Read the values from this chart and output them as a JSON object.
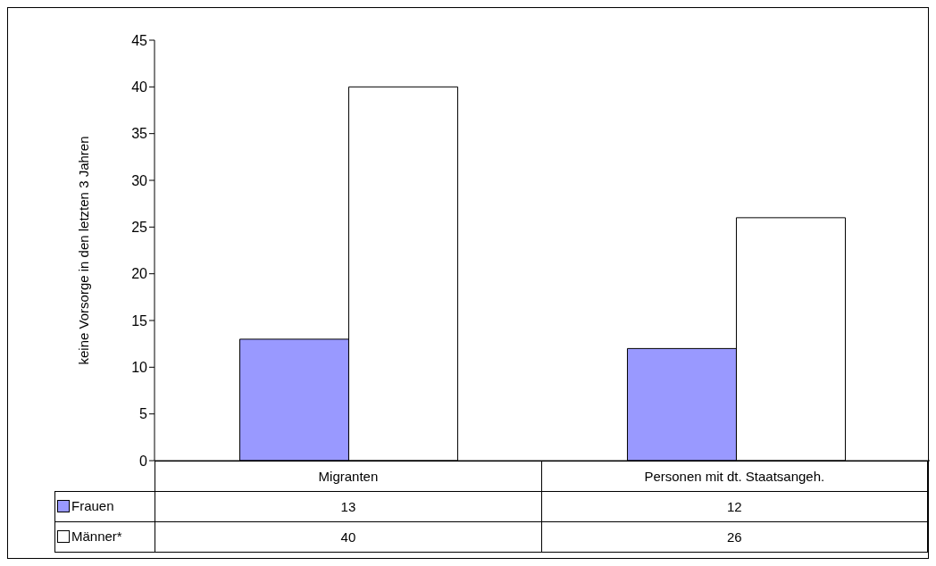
{
  "chart_data": {
    "type": "bar",
    "ylabel": "keine Vorsorge in den letzten 3 Jahren",
    "categories": [
      "Migranten",
      "Personen mit dt. Staatsangeh."
    ],
    "series": [
      {
        "name": "Frauen",
        "color": "#9999ff",
        "values": [
          13,
          12
        ]
      },
      {
        "name": "Männer*",
        "color": "#ffffff",
        "values": [
          40,
          26
        ]
      }
    ],
    "ylim": [
      0,
      45
    ],
    "yticks": [
      0,
      5,
      10,
      15,
      20,
      25,
      30,
      35,
      40,
      45
    ],
    "grid": false,
    "legend": "bottom",
    "data_labels": true
  }
}
